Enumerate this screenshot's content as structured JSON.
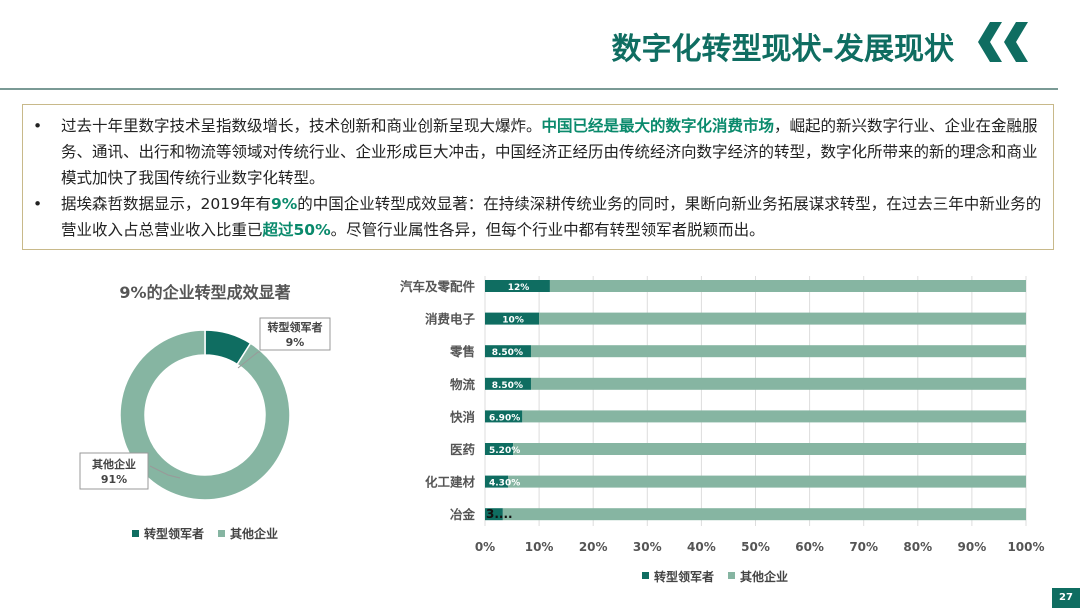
{
  "header": {
    "title": "数字化转型现状-发展现状"
  },
  "bullets": [
    {
      "parts": [
        {
          "t": "过去十年里数字技术呈指数级增长，技术创新和商业创新呈现大爆炸。"
        },
        {
          "t": "中国已经是最大的数字化消费市场",
          "hl": true
        },
        {
          "t": "，崛起的新兴数字行业、企业在金融服务、通讯、出行和物流等领域对传统行业、企业形成巨大冲击，中国经济正经历由传统经济向数字经济的转型，数字化所带来的新的理念和商业模式加快了我国传统行业数字化转型。"
        }
      ]
    },
    {
      "parts": [
        {
          "t": "据埃森哲数据显示，2019年有"
        },
        {
          "t": "9%",
          "hl": true
        },
        {
          "t": "的中国企业转型成效显著：在持续深耕传统业务的同时，果断向新业务拓展谋求转型，在过去三年中新业务的营业收入占总营业收入比重已"
        },
        {
          "t": "超过50%",
          "hl": true
        },
        {
          "t": "。尽管行业属性各异，但每个行业中都有转型领军者脱颖而出。"
        }
      ]
    }
  ],
  "colors": {
    "dark": "#0f6d61",
    "light": "#86b5a2",
    "title": "#0f6d61"
  },
  "chart_data": [
    {
      "type": "pie",
      "donut": true,
      "title": "9%的企业转型成效显著",
      "slices": [
        {
          "name": "转型领军者",
          "value": 9,
          "label": "9%"
        },
        {
          "name": "其他企业",
          "value": 91,
          "label": "91%"
        }
      ],
      "legend": "bottom"
    },
    {
      "type": "bar",
      "stacked": true,
      "orientation": "horizontal",
      "percent_stacked": true,
      "categories": [
        "汽车及零配件",
        "消费电子",
        "零售",
        "物流",
        "快消",
        "医药",
        "化工建材",
        "冶金"
      ],
      "series": [
        {
          "name": "转型领军者",
          "values": [
            12,
            10,
            8.5,
            8.5,
            6.9,
            5.2,
            4.3,
            3.3
          ],
          "labels": [
            "12%",
            "10%",
            "8.50%",
            "8.50%",
            "6.90%",
            "5.20%",
            "4.30%",
            "3...."
          ]
        },
        {
          "name": "其他企业",
          "values": [
            88,
            90,
            91.5,
            91.5,
            93.1,
            94.8,
            95.7,
            96.7
          ]
        }
      ],
      "xticks": [
        "0%",
        "10%",
        "20%",
        "30%",
        "40%",
        "50%",
        "60%",
        "70%",
        "80%",
        "90%",
        "100%"
      ],
      "xlim": [
        0,
        100
      ],
      "grid": true,
      "legend": "bottom"
    }
  ],
  "page_number": "27"
}
